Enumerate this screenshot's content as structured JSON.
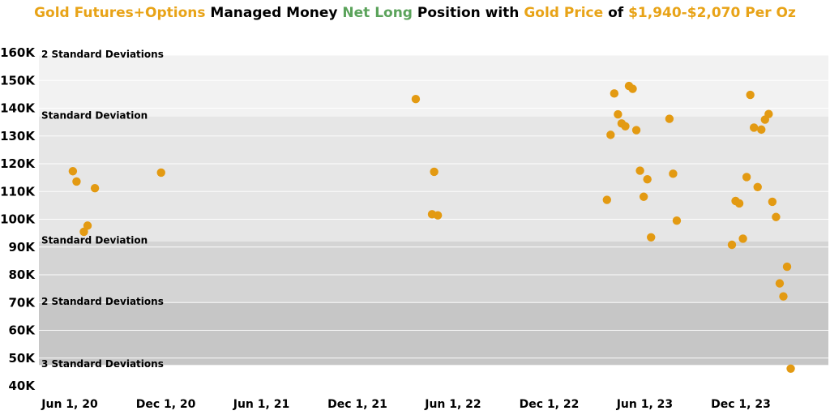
{
  "title": {
    "segments": [
      {
        "text": "Gold Futures+Options",
        "color": "#E8A317"
      },
      {
        "text": " Managed Money ",
        "color": "#000000"
      },
      {
        "text": "Net Long",
        "color": "#5BA35B"
      },
      {
        "text": " Position with ",
        "color": "#000000"
      },
      {
        "text": "Gold Price",
        "color": "#E8A317"
      },
      {
        "text": " of ",
        "color": "#000000"
      },
      {
        "text": "$1,940-$2,070 Per Oz",
        "color": "#E8A317"
      }
    ]
  },
  "chart_data": {
    "type": "scatter",
    "point_color": "#E39A12",
    "ylim": [
      40000,
      160000
    ],
    "xlim": [
      "2020-05-15",
      "2024-03-10"
    ],
    "y_ticks": [
      {
        "value": 40000,
        "label": "40K"
      },
      {
        "value": 50000,
        "label": "50K"
      },
      {
        "value": 60000,
        "label": "60K"
      },
      {
        "value": 70000,
        "label": "70K"
      },
      {
        "value": 80000,
        "label": "80K"
      },
      {
        "value": 90000,
        "label": "90K"
      },
      {
        "value": 100000,
        "label": "100K"
      },
      {
        "value": 110000,
        "label": "110K"
      },
      {
        "value": 120000,
        "label": "120K"
      },
      {
        "value": 130000,
        "label": "130K"
      },
      {
        "value": 140000,
        "label": "140K"
      },
      {
        "value": 150000,
        "label": "150K"
      },
      {
        "value": 160000,
        "label": "160K"
      }
    ],
    "x_ticks": [
      {
        "date": "2020-06-01",
        "label": "Jun 1, 20"
      },
      {
        "date": "2020-12-01",
        "label": "Dec 1, 20"
      },
      {
        "date": "2021-06-01",
        "label": "Jun 1, 21"
      },
      {
        "date": "2021-12-01",
        "label": "Dec 1, 21"
      },
      {
        "date": "2022-06-01",
        "label": "Jun 1, 22"
      },
      {
        "date": "2022-12-01",
        "label": "Dec 1, 22"
      },
      {
        "date": "2023-06-01",
        "label": "Jun 1, 23"
      },
      {
        "date": "2023-12-01",
        "label": "Dec 1, 23"
      }
    ],
    "bands": [
      {
        "from": 137000,
        "to": 159000,
        "color": "#F2F2F2",
        "label": "2 Standard Deviations"
      },
      {
        "from": 92000,
        "to": 137000,
        "color": "#E6E6E6",
        "label": "Standard Deviation"
      },
      {
        "from": 70000,
        "to": 92000,
        "color": "#D4D4D4",
        "label": "Standard Deviation"
      },
      {
        "from": 47500,
        "to": 70000,
        "color": "#C6C6C6",
        "label": "2 Standard Deviations"
      },
      {
        "from": 47500,
        "to": 47500,
        "color": "#C6C6C6",
        "label": "3 Standard Deviations"
      }
    ],
    "points": [
      {
        "x": "2020-06-07",
        "y": 117300
      },
      {
        "x": "2020-06-14",
        "y": 113600
      },
      {
        "x": "2020-06-28",
        "y": 95500
      },
      {
        "x": "2020-07-05",
        "y": 97700
      },
      {
        "x": "2020-07-19",
        "y": 111200
      },
      {
        "x": "2020-11-22",
        "y": 116800
      },
      {
        "x": "2022-03-22",
        "y": 143300
      },
      {
        "x": "2022-04-22",
        "y": 101800
      },
      {
        "x": "2022-04-26",
        "y": 117100
      },
      {
        "x": "2022-05-03",
        "y": 101400
      },
      {
        "x": "2023-03-21",
        "y": 107000
      },
      {
        "x": "2023-03-28",
        "y": 130400
      },
      {
        "x": "2023-04-04",
        "y": 145300
      },
      {
        "x": "2023-04-11",
        "y": 137800
      },
      {
        "x": "2023-04-18",
        "y": 134500
      },
      {
        "x": "2023-04-25",
        "y": 133500
      },
      {
        "x": "2023-05-02",
        "y": 148000
      },
      {
        "x": "2023-05-09",
        "y": 147000
      },
      {
        "x": "2023-05-16",
        "y": 132100
      },
      {
        "x": "2023-05-23",
        "y": 117500
      },
      {
        "x": "2023-05-30",
        "y": 108100
      },
      {
        "x": "2023-06-06",
        "y": 114400
      },
      {
        "x": "2023-06-13",
        "y": 93500
      },
      {
        "x": "2023-07-18",
        "y": 136200
      },
      {
        "x": "2023-07-25",
        "y": 116400
      },
      {
        "x": "2023-08-01",
        "y": 99500
      },
      {
        "x": "2023-11-14",
        "y": 90800
      },
      {
        "x": "2023-11-21",
        "y": 106600
      },
      {
        "x": "2023-11-28",
        "y": 105700
      },
      {
        "x": "2023-12-05",
        "y": 93000
      },
      {
        "x": "2023-12-12",
        "y": 115200
      },
      {
        "x": "2023-12-19",
        "y": 144800
      },
      {
        "x": "2023-12-26",
        "y": 133000
      },
      {
        "x": "2024-01-02",
        "y": 111600
      },
      {
        "x": "2024-01-09",
        "y": 132300
      },
      {
        "x": "2024-01-16",
        "y": 135900
      },
      {
        "x": "2024-01-23",
        "y": 137900
      },
      {
        "x": "2024-01-30",
        "y": 106300
      },
      {
        "x": "2024-02-06",
        "y": 100800
      },
      {
        "x": "2024-02-13",
        "y": 76900
      },
      {
        "x": "2024-02-20",
        "y": 72200
      },
      {
        "x": "2024-02-27",
        "y": 82900
      },
      {
        "x": "2024-03-05",
        "y": 46200
      }
    ]
  }
}
